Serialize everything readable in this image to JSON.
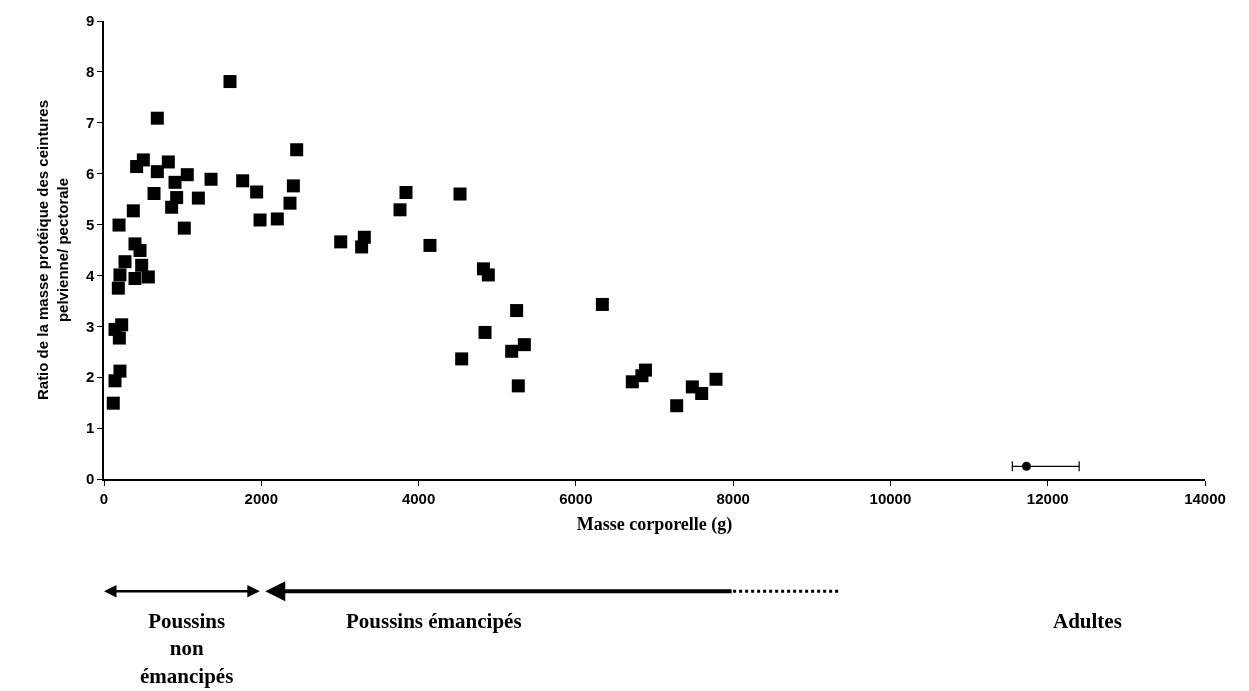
{
  "chart_data": {
    "type": "scatter",
    "xlabel": "Masse corporelle (g)",
    "ylabel": "Ratio de la masse protéique des ceintures\npelvienne/ pectorale",
    "xlim": [
      0,
      14000
    ],
    "xticks": [
      0,
      2000,
      4000,
      6000,
      8000,
      10000,
      12000,
      14000
    ],
    "ylim": [
      0,
      9
    ],
    "yticks": [
      0,
      1,
      2,
      3,
      4,
      5,
      6,
      7,
      8,
      9
    ],
    "annotations": [
      "Poussins\nnon\némancipés",
      "Poussins émancipés",
      "Adultes"
    ],
    "series": [
      {
        "color": "#000000",
        "marker": "square",
        "x": [
          1602,
          678,
          2450,
          415,
          500,
          818,
          678,
          1059,
          1361,
          1763,
          1941,
          2408,
          2365,
          903,
          636,
          924,
          860,
          1200,
          1984,
          2204,
          373,
          191,
          1021,
          394,
          458,
          479,
          564,
          267,
          203,
          182,
          394,
          225,
          140,
          195,
          203,
          140,
          118,
          3840,
          4527,
          3764,
          3010,
          3310,
          3276,
          4145,
          4825,
          4887,
          5268,
          5247,
          4845,
          4548,
          5184,
          5345,
          6337,
          6718,
          6885,
          6840,
          7282,
          7481,
          7600,
          7782
        ],
        "values": [
          7.81,
          7.09,
          6.47,
          6.14,
          6.27,
          6.23,
          6.04,
          5.98,
          5.89,
          5.86,
          5.64,
          5.76,
          5.42,
          5.83,
          5.61,
          5.53,
          5.34,
          5.52,
          5.09,
          5.11,
          5.27,
          4.99,
          4.93,
          4.62,
          4.49,
          4.2,
          3.97,
          4.27,
          4.01,
          3.75,
          3.94,
          3.03,
          2.94,
          2.77,
          2.12,
          1.93,
          1.49,
          5.63,
          5.6,
          5.29,
          4.66,
          4.75,
          4.56,
          4.59,
          4.13,
          4.01,
          1.83,
          3.31,
          2.88,
          2.36,
          2.51,
          2.64,
          3.43,
          1.91,
          2.14,
          2.03,
          1.44,
          1.81,
          1.68,
          1.96
        ]
      },
      {
        "color": "#000000",
        "marker": "circle",
        "x": [
          11730
        ],
        "values": [
          0.25
        ],
        "xerrors": [
          [
            11550,
            12400
          ]
        ]
      }
    ]
  }
}
